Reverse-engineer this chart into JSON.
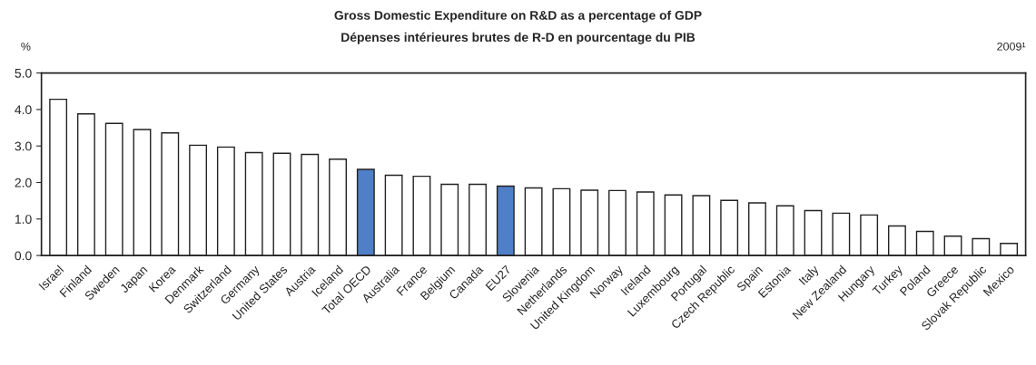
{
  "chart_data": {
    "type": "bar",
    "title": "Gross Domestic Expenditure on R&D as a percentage of GDP",
    "subtitle": "Dépenses intérieures brutes de R-D en pourcentage du PIB",
    "ylabel": "%",
    "annotations": [
      "2009¹"
    ],
    "categories": [
      "Israel",
      "Finland",
      "Sweden",
      "Japan",
      "Korea",
      "Denmark",
      "Switzerland",
      "Germany",
      "United States",
      "Austria",
      "Iceland",
      "Total OECD",
      "Australia",
      "France",
      "Belgium",
      "Canada",
      "EU27",
      "Slovenia",
      "Netherlands",
      "United Kingdom",
      "Norway",
      "Ireland",
      "Luxembourg",
      "Portugal",
      "Czech Republic",
      "Spain",
      "Estonia",
      "Italy",
      "New Zealand",
      "Hungary",
      "Turkey",
      "Poland",
      "Greece",
      "Slovak Republic",
      "Mexico"
    ],
    "values": [
      4.28,
      3.88,
      3.62,
      3.45,
      3.36,
      3.02,
      2.97,
      2.82,
      2.8,
      2.77,
      2.64,
      2.36,
      2.2,
      2.17,
      1.95,
      1.95,
      1.9,
      1.85,
      1.83,
      1.79,
      1.78,
      1.74,
      1.66,
      1.64,
      1.51,
      1.44,
      1.36,
      1.23,
      1.16,
      1.11,
      0.81,
      0.66,
      0.53,
      0.46,
      0.33
    ],
    "colors": [
      "#ffffff",
      "#ffffff",
      "#ffffff",
      "#ffffff",
      "#ffffff",
      "#ffffff",
      "#ffffff",
      "#ffffff",
      "#ffffff",
      "#ffffff",
      "#ffffff",
      "#4f7fc8",
      "#ffffff",
      "#ffffff",
      "#ffffff",
      "#ffffff",
      "#4f7fc8",
      "#ffffff",
      "#ffffff",
      "#ffffff",
      "#ffffff",
      "#ffffff",
      "#ffffff",
      "#ffffff",
      "#ffffff",
      "#ffffff",
      "#ffffff",
      "#ffffff",
      "#ffffff",
      "#ffffff",
      "#ffffff",
      "#ffffff",
      "#ffffff",
      "#ffffff",
      "#ffffff"
    ],
    "ylim": [
      0,
      5
    ],
    "yticks": [
      {
        "value": 0,
        "label": "0.0"
      },
      {
        "value": 1,
        "label": "1.0"
      },
      {
        "value": 2,
        "label": "2.0"
      },
      {
        "value": 3,
        "label": "3.0"
      },
      {
        "value": 4,
        "label": "4.0"
      },
      {
        "value": 5,
        "label": "5.0"
      }
    ],
    "grid": false,
    "legend": false
  }
}
